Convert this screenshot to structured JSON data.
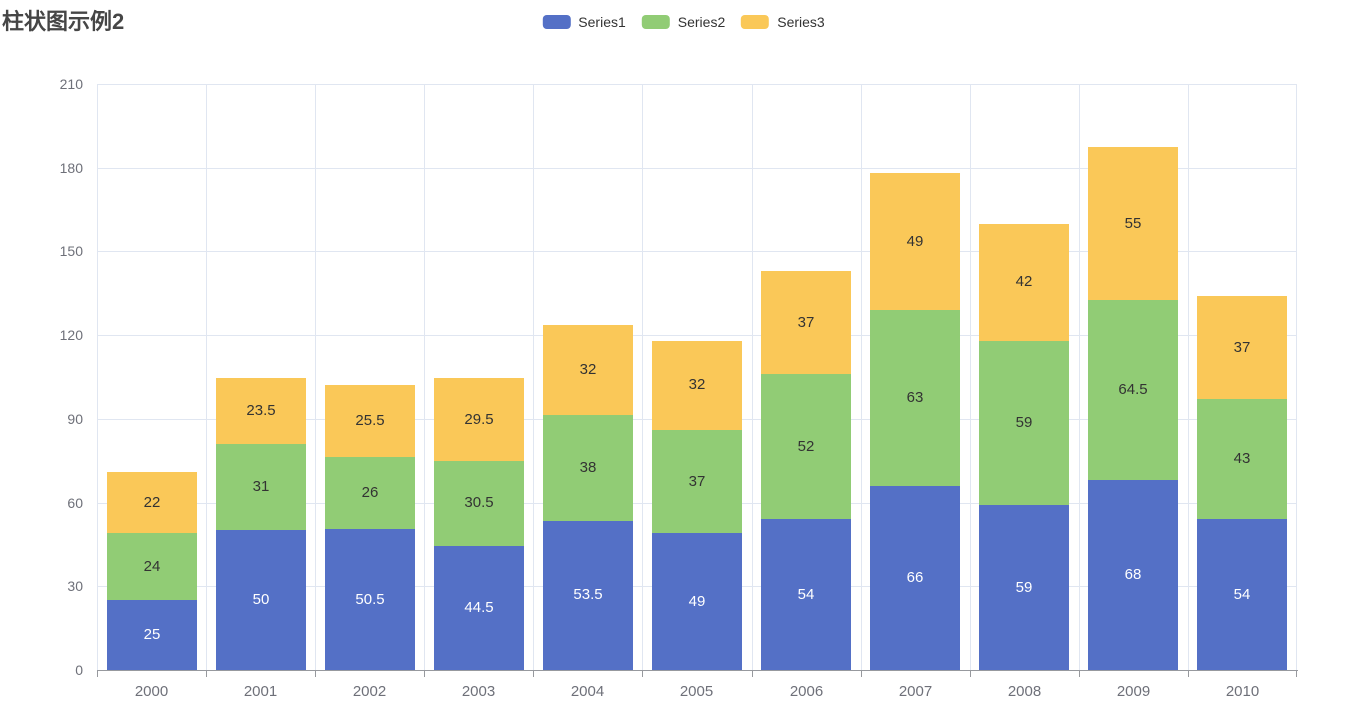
{
  "page": {
    "title": "柱状图示例2"
  },
  "legend": {
    "items": [
      "Series1",
      "Series2",
      "Series3"
    ]
  },
  "chart_data": {
    "type": "bar",
    "stacked": true,
    "title": "柱状图示例2",
    "xlabel": "",
    "ylabel": "",
    "ylim": [
      0,
      210
    ],
    "yticks": [
      0,
      30,
      60,
      90,
      120,
      150,
      180,
      210
    ],
    "grid": true,
    "legend_position": "top-center",
    "categories": [
      "2000",
      "2001",
      "2002",
      "2003",
      "2004",
      "2005",
      "2006",
      "2007",
      "2008",
      "2009",
      "2010"
    ],
    "series": [
      {
        "name": "Series1",
        "color": "#5470c6",
        "label_color": "#ffffff",
        "values": [
          25,
          50,
          50.5,
          44.5,
          53.5,
          49,
          54,
          66,
          59,
          68,
          54
        ]
      },
      {
        "name": "Series2",
        "color": "#91cc75",
        "label_color": "#333333",
        "values": [
          24,
          31,
          26,
          30.5,
          38,
          37,
          52,
          63,
          59,
          64.5,
          43
        ]
      },
      {
        "name": "Series3",
        "color": "#fac858",
        "label_color": "#333333",
        "values": [
          22,
          23.5,
          25.5,
          29.5,
          32,
          32,
          37,
          49,
          42,
          55,
          37
        ]
      }
    ],
    "colors": {
      "grid_line": "#e0e6f1",
      "axis_line": "#97999e",
      "axis_label": "#6e7079",
      "title": "#464646",
      "legend_text": "#333333"
    }
  }
}
